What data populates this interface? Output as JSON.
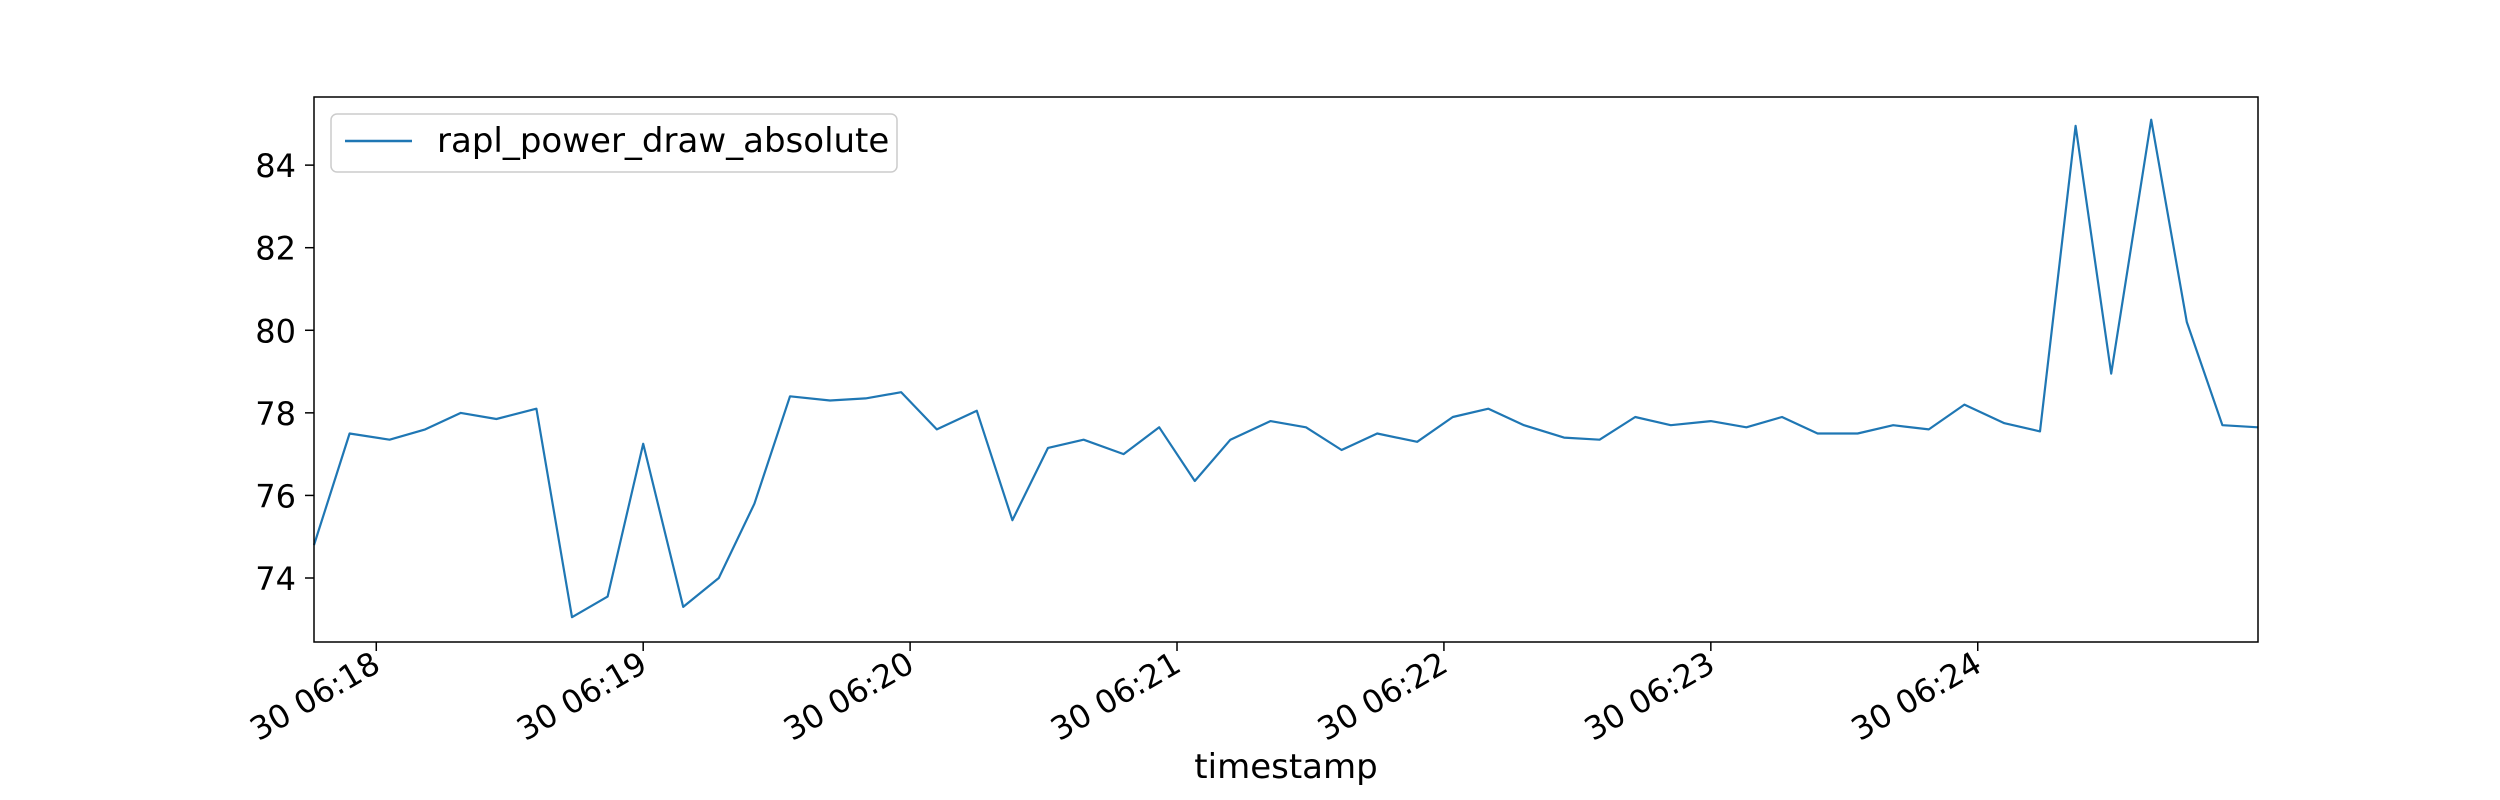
{
  "chart_data": {
    "type": "line",
    "title": "",
    "xlabel": "timestamp",
    "ylabel": "",
    "grid": false,
    "legend_position": "top-left",
    "x_tick_labels": [
      "30 06:18",
      "30 06:19",
      "30 06:20",
      "30 06:21",
      "30 06:22",
      "30 06:23",
      "30 06:24"
    ],
    "y_tick_labels": [
      "74",
      "76",
      "78",
      "80",
      "82",
      "84"
    ],
    "y_ticks": [
      74,
      76,
      78,
      80,
      82,
      84
    ],
    "ylim": [
      72.45,
      85.65
    ],
    "series": [
      {
        "name": "rapl_power_draw_absolute",
        "color": "#1f77b4",
        "x": [
          "06:17:46",
          "06:17:54",
          "06:18:03",
          "06:18:11",
          "06:18:19",
          "06:18:27",
          "06:18:36",
          "06:18:44",
          "06:18:52",
          "06:19:00",
          "06:19:09",
          "06:19:17",
          "06:19:25",
          "06:19:33",
          "06:19:42",
          "06:19:50",
          "06:19:58",
          "06:20:06",
          "06:20:15",
          "06:20:23",
          "06:20:31",
          "06:20:39",
          "06:20:48",
          "06:20:56",
          "06:21:04",
          "06:21:12",
          "06:21:21",
          "06:21:29",
          "06:21:37",
          "06:21:45",
          "06:21:54",
          "06:22:02",
          "06:22:10",
          "06:22:18",
          "06:22:27",
          "06:22:35",
          "06:22:43",
          "06:22:51",
          "06:23:00",
          "06:23:08",
          "06:23:16",
          "06:23:24",
          "06:23:33",
          "06:23:41",
          "06:23:49",
          "06:23:57",
          "06:24:06",
          "06:24:14",
          "06:24:22",
          "06:24:30",
          "06:24:39",
          "06:24:47",
          "06:24:55",
          "06:25:03"
        ],
        "values": [
          74.8,
          77.5,
          77.35,
          77.6,
          78.0,
          77.85,
          78.1,
          73.05,
          73.55,
          77.25,
          73.3,
          74.0,
          75.8,
          78.4,
          78.3,
          78.35,
          78.5,
          77.6,
          78.05,
          75.4,
          77.15,
          77.35,
          77.0,
          77.65,
          76.35,
          77.35,
          77.8,
          77.65,
          77.1,
          77.5,
          77.3,
          77.9,
          78.1,
          77.7,
          77.4,
          77.35,
          77.9,
          77.7,
          77.8,
          77.65,
          77.9,
          77.5,
          77.5,
          77.7,
          77.6,
          78.2,
          77.75,
          77.55,
          84.95,
          78.95,
          85.1,
          80.2,
          77.7,
          77.65
        ]
      }
    ]
  }
}
